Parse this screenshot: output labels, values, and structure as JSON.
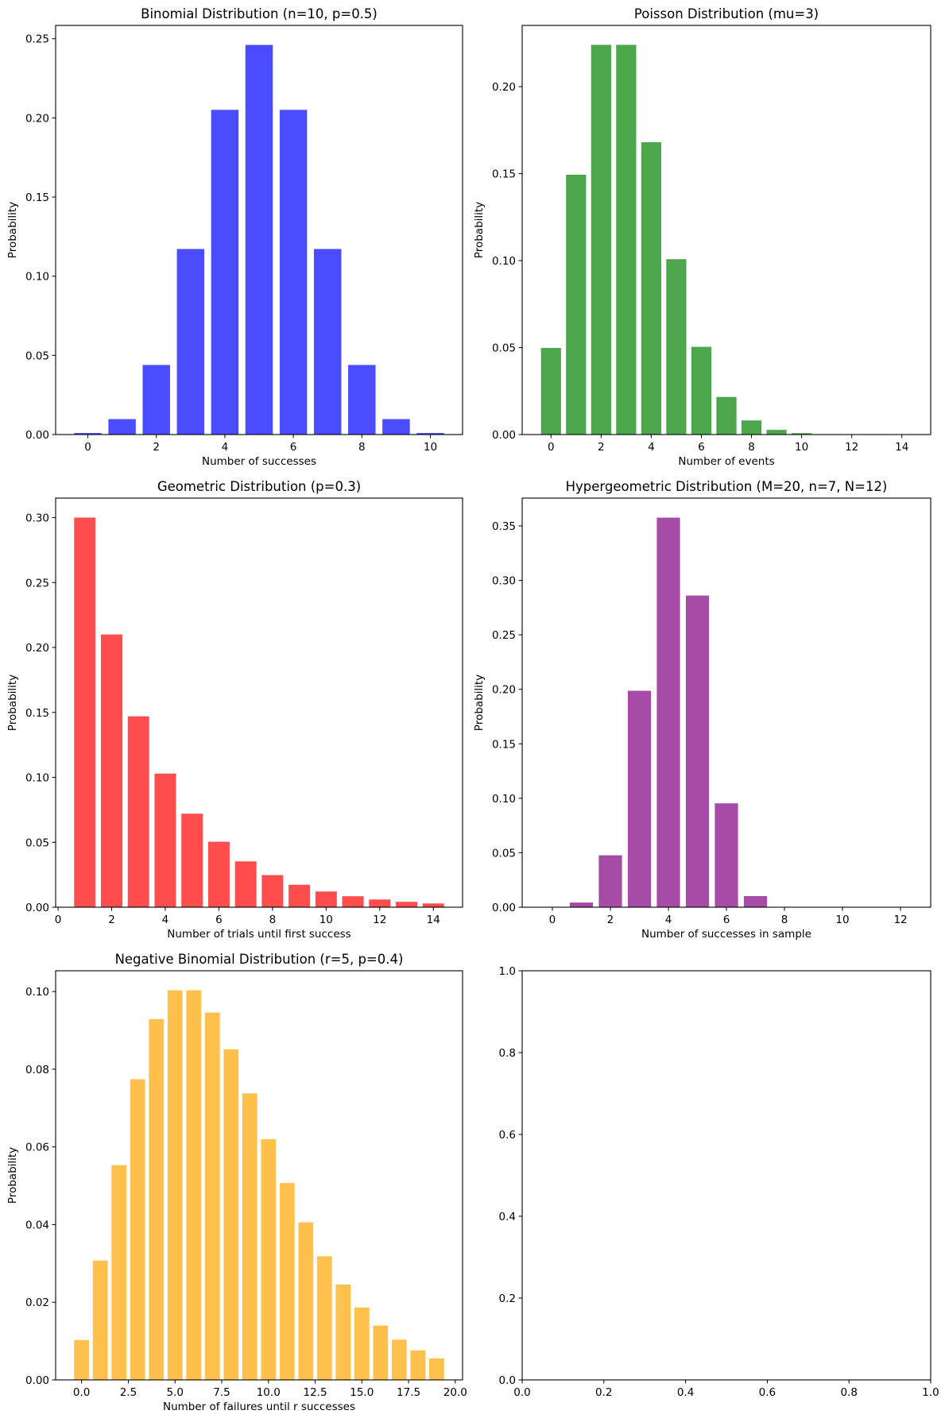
{
  "chart_data": [
    {
      "type": "bar",
      "title": "Binomial Distribution (n=10, p=0.5)",
      "xlabel": "Number of successes",
      "ylabel": "Probability",
      "color": "#4c4cff",
      "x": [
        0,
        1,
        2,
        3,
        4,
        5,
        6,
        7,
        8,
        9,
        10
      ],
      "values": [
        0.000977,
        0.009766,
        0.043945,
        0.117188,
        0.205078,
        0.246094,
        0.205078,
        0.117188,
        0.043945,
        0.009766,
        0.000977
      ],
      "xlim": [
        -0.94,
        10.94
      ],
      "ylim": [
        0,
        0.2584
      ],
      "xticks": [
        0,
        2,
        4,
        6,
        8,
        10
      ],
      "xtick_labels": [
        "0",
        "2",
        "4",
        "6",
        "8",
        "10"
      ],
      "yticks": [
        0,
        0.05,
        0.1,
        0.15,
        0.2,
        0.25
      ],
      "ytick_labels": [
        "0.00",
        "0.05",
        "0.10",
        "0.15",
        "0.20",
        "0.25"
      ],
      "grid": false
    },
    {
      "type": "bar",
      "title": "Poisson Distribution (mu=3)",
      "xlabel": "Number of events",
      "ylabel": "Probability",
      "color": "#4ca64c",
      "x": [
        0,
        1,
        2,
        3,
        4,
        5,
        6,
        7,
        8,
        9,
        10,
        11,
        12,
        13,
        14
      ],
      "values": [
        0.049787,
        0.149361,
        0.224042,
        0.224042,
        0.168031,
        0.100819,
        0.050409,
        0.021604,
        0.008102,
        0.002701,
        0.00081,
        0.000221,
        5.52e-05,
        1.27e-05,
        2.7e-06
      ],
      "xlim": [
        -1.15,
        15.15
      ],
      "ylim": [
        0,
        0.2352
      ],
      "xticks": [
        0,
        2,
        4,
        6,
        8,
        10,
        12,
        14
      ],
      "xtick_labels": [
        "0",
        "2",
        "4",
        "6",
        "8",
        "10",
        "12",
        "14"
      ],
      "yticks": [
        0,
        0.05,
        0.1,
        0.15,
        0.2
      ],
      "ytick_labels": [
        "0.00",
        "0.05",
        "0.10",
        "0.15",
        "0.20"
      ],
      "grid": false
    },
    {
      "type": "bar",
      "title": "Geometric Distribution (p=0.3)",
      "xlabel": "Number of trials until first success",
      "ylabel": "Probability",
      "color": "#ff4c4c",
      "x": [
        1,
        2,
        3,
        4,
        5,
        6,
        7,
        8,
        9,
        10,
        11,
        12,
        13,
        14
      ],
      "values": [
        0.3,
        0.21,
        0.147,
        0.1029,
        0.07203,
        0.050421,
        0.035295,
        0.024706,
        0.017294,
        0.012106,
        0.008474,
        0.005932,
        0.004152,
        0.002907
      ],
      "xlim": [
        -0.09,
        15.09
      ],
      "ylim": [
        0,
        0.315
      ],
      "xticks": [
        0,
        2,
        4,
        6,
        8,
        10,
        12,
        14
      ],
      "xtick_labels": [
        "0",
        "2",
        "4",
        "6",
        "8",
        "10",
        "12",
        "14"
      ],
      "yticks": [
        0,
        0.05,
        0.1,
        0.15,
        0.2,
        0.25,
        0.3
      ],
      "ytick_labels": [
        "0.00",
        "0.05",
        "0.10",
        "0.15",
        "0.20",
        "0.25",
        "0.30"
      ],
      "grid": false
    },
    {
      "type": "bar",
      "title": "Hypergeometric Distribution (M=20, n=7, N=12)",
      "xlabel": "Number of successes in sample",
      "ylabel": "Probability",
      "color": "#a64ca6",
      "x": [
        0,
        1,
        2,
        3,
        4,
        5,
        6,
        7,
        8,
        9,
        10,
        11,
        12
      ],
      "values": [
        0.000103,
        0.004334,
        0.047678,
        0.198658,
        0.357585,
        0.286068,
        0.095356,
        0.010217,
        0,
        0,
        0,
        0,
        0
      ],
      "xlim": [
        -1.04,
        13.04
      ],
      "ylim": [
        0,
        0.3755
      ],
      "xticks": [
        0,
        2,
        4,
        6,
        8,
        10,
        12
      ],
      "xtick_labels": [
        "0",
        "2",
        "4",
        "6",
        "8",
        "10",
        "12"
      ],
      "yticks": [
        0,
        0.05,
        0.1,
        0.15,
        0.2,
        0.25,
        0.3,
        0.35
      ],
      "ytick_labels": [
        "0.00",
        "0.05",
        "0.10",
        "0.15",
        "0.20",
        "0.25",
        "0.30",
        "0.35"
      ],
      "grid": false
    },
    {
      "type": "bar",
      "title": "Negative Binomial Distribution (r=5, p=0.4)",
      "xlabel": "Number of failures until r successes",
      "ylabel": "Probability",
      "color": "#ffc04c",
      "x": [
        0,
        1,
        2,
        3,
        4,
        5,
        6,
        7,
        8,
        9,
        10,
        11,
        12,
        13,
        14,
        15,
        16,
        17,
        18,
        19
      ],
      "values": [
        0.01024,
        0.03072,
        0.055296,
        0.077414,
        0.092897,
        0.100329,
        0.100329,
        0.094596,
        0.085136,
        0.073782,
        0.061979,
        0.05071,
        0.040568,
        0.031831,
        0.024555,
        0.018662,
        0.013996,
        0.010374,
        0.007607,
        0.005525
      ],
      "xlim": [
        -1.39,
        20.39
      ],
      "ylim": [
        0,
        0.10535
      ],
      "xticks": [
        0,
        2.5,
        5,
        7.5,
        10,
        12.5,
        15,
        17.5,
        20
      ],
      "xtick_labels": [
        "0.0",
        "2.5",
        "5.0",
        "7.5",
        "10.0",
        "12.5",
        "15.0",
        "17.5",
        "20.0"
      ],
      "yticks": [
        0,
        0.02,
        0.04,
        0.06,
        0.08,
        0.1
      ],
      "ytick_labels": [
        "0.00",
        "0.02",
        "0.04",
        "0.06",
        "0.08",
        "0.10"
      ],
      "grid": false
    },
    {
      "type": "bar",
      "title": "",
      "xlabel": "",
      "ylabel": "",
      "color": "#000000",
      "x": [],
      "values": [],
      "xlim": [
        0,
        1
      ],
      "ylim": [
        0,
        1
      ],
      "xticks": [
        0,
        0.2,
        0.4,
        0.6,
        0.8,
        1
      ],
      "xtick_labels": [
        "0.0",
        "0.2",
        "0.4",
        "0.6",
        "0.8",
        "1.0"
      ],
      "yticks": [
        0,
        0.2,
        0.4,
        0.6,
        0.8,
        1
      ],
      "ytick_labels": [
        "0.0",
        "0.2",
        "0.4",
        "0.6",
        "0.8",
        "1.0"
      ],
      "grid": false
    }
  ]
}
